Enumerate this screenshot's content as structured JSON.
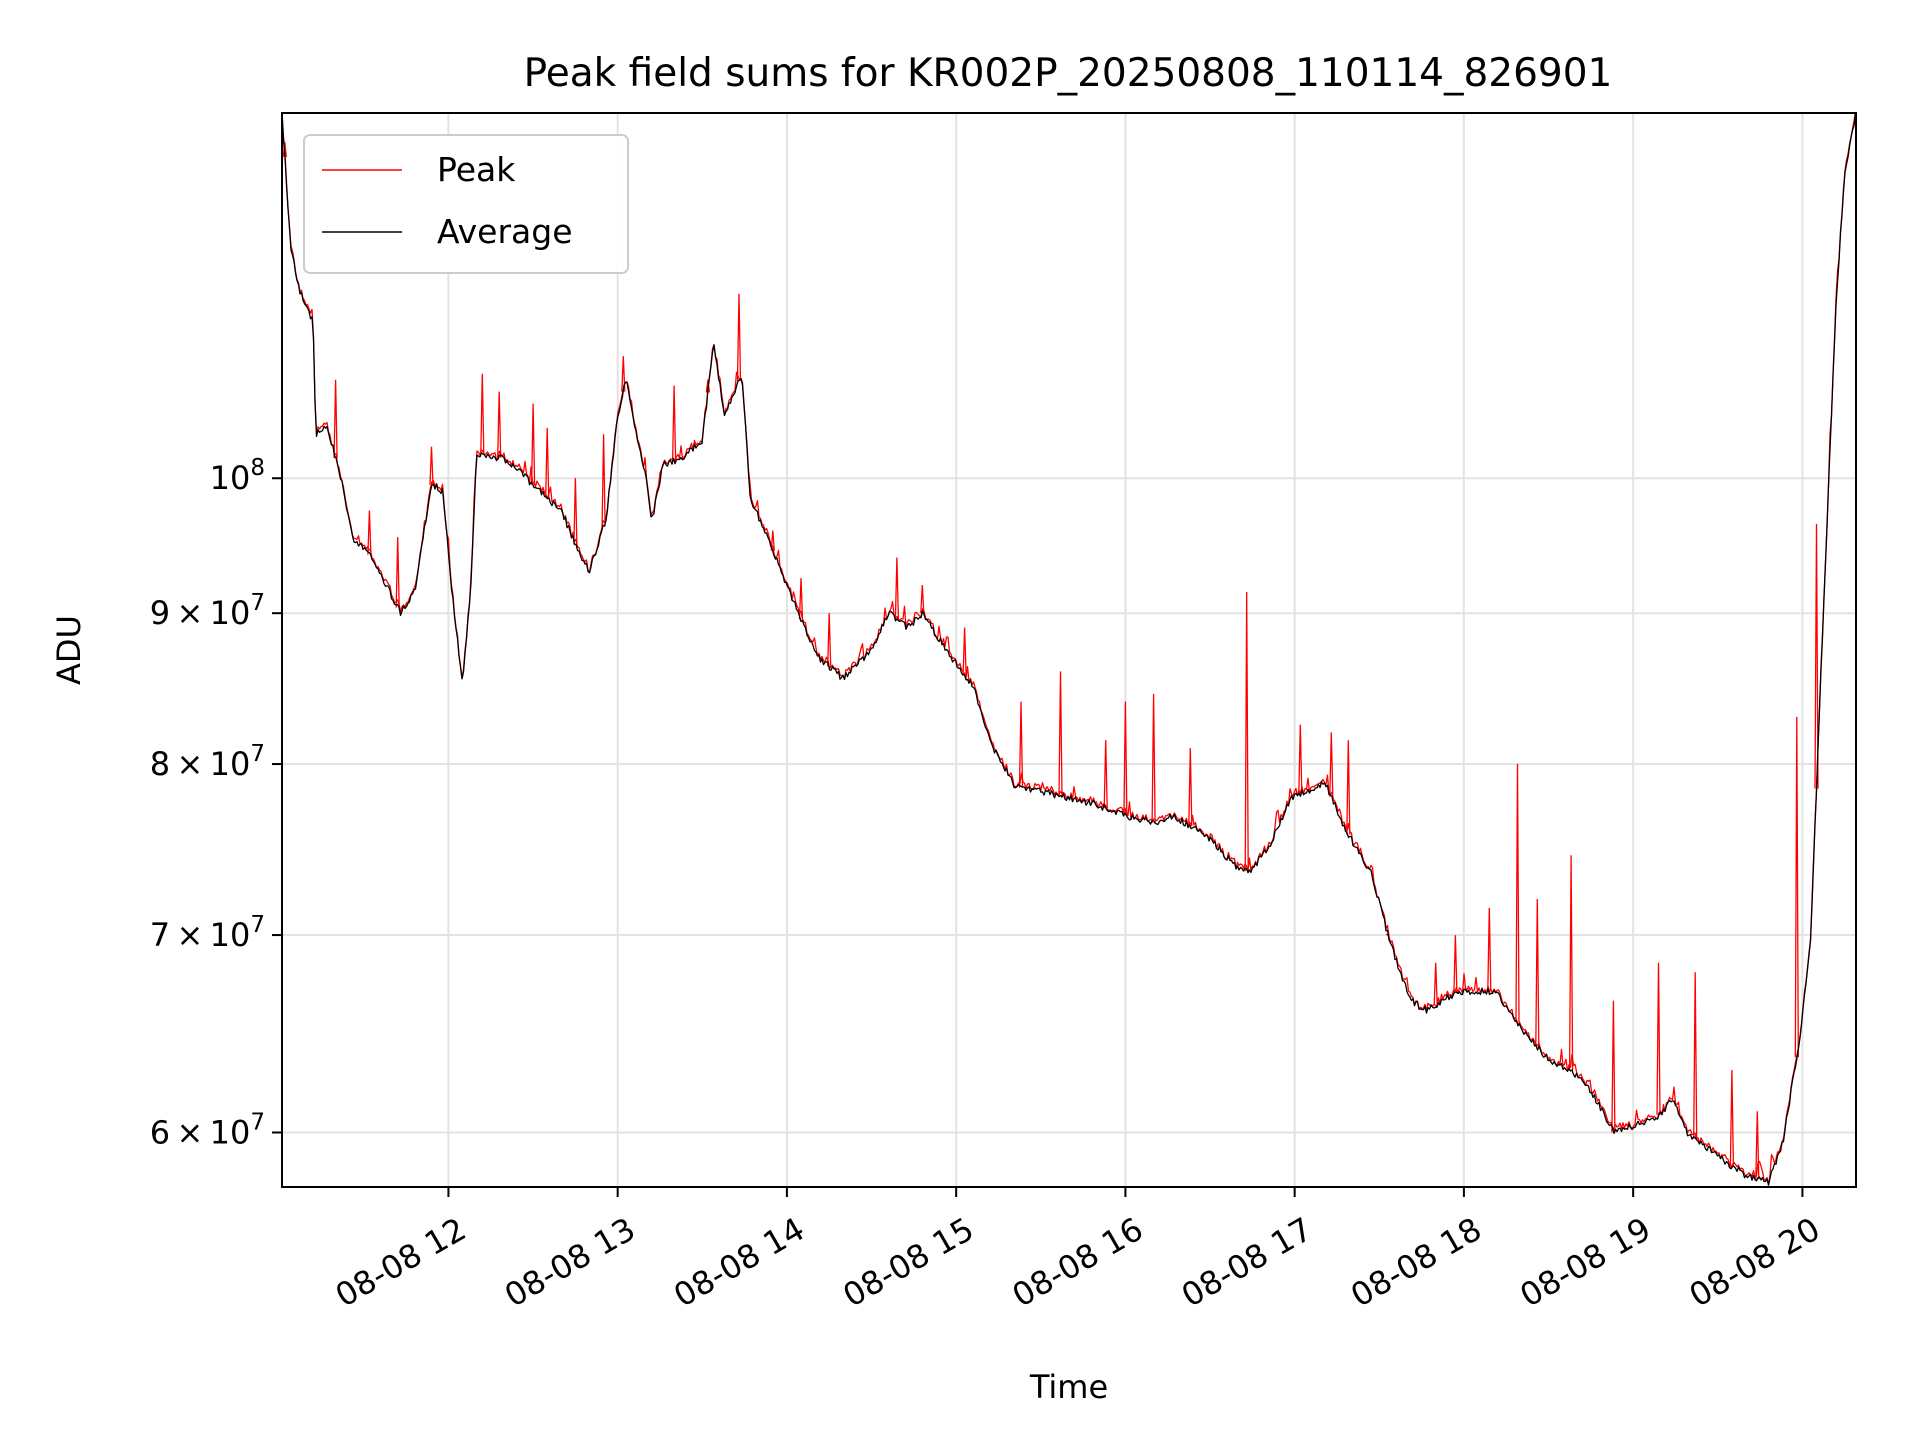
{
  "chart_data": {
    "type": "line",
    "title": "Peak field sums for KR002P_20250808_110114_826901",
    "xlabel": "Time",
    "ylabel": "ADU",
    "yscale": "log",
    "xlim": [
      "2025-08-08 11:01",
      "2025-08-08 20:19"
    ],
    "ylim": [
      57500000,
      133000000
    ],
    "grid": true,
    "legend": "top-left",
    "x_ticks": [
      "08-08 12",
      "08-08 13",
      "08-08 14",
      "08-08 15",
      "08-08 16",
      "08-08 17",
      "08-08 18",
      "08-08 19",
      "08-08 20"
    ],
    "y_ticks": [
      {
        "value": 60000000,
        "mantissa": "6",
        "base": "10",
        "exp": "7"
      },
      {
        "value": 70000000,
        "mantissa": "7",
        "base": "10",
        "exp": "7"
      },
      {
        "value": 80000000,
        "mantissa": "8",
        "base": "10",
        "exp": "7"
      },
      {
        "value": 90000000,
        "mantissa": "9",
        "base": "10",
        "exp": "7"
      },
      {
        "value": 100000000,
        "mantissa": "",
        "base": "10",
        "exp": "8"
      }
    ],
    "series": [
      {
        "name": "Average",
        "color": "#000000",
        "points": [
          [
            "2025-08-08 11:01",
            133000000
          ],
          [
            "2025-08-08 11:04",
            120000000
          ],
          [
            "2025-08-08 11:07",
            116000000
          ],
          [
            "2025-08-08 11:12",
            113000000
          ],
          [
            "2025-08-08 11:13",
            103500000
          ],
          [
            "2025-08-08 11:17",
            104000000
          ],
          [
            "2025-08-08 11:22",
            100000000
          ],
          [
            "2025-08-08 11:26",
            95500000
          ],
          [
            "2025-08-08 11:33",
            94000000
          ],
          [
            "2025-08-08 11:43",
            90000000
          ],
          [
            "2025-08-08 11:48",
            91500000
          ],
          [
            "2025-08-08 11:54",
            99500000
          ],
          [
            "2025-08-08 11:58",
            99000000
          ],
          [
            "2025-08-08 12:01",
            92000000
          ],
          [
            "2025-08-08 12:05",
            85000000
          ],
          [
            "2025-08-08 12:08",
            92000000
          ],
          [
            "2025-08-08 12:10",
            102000000
          ],
          [
            "2025-08-08 12:20",
            101500000
          ],
          [
            "2025-08-08 12:30",
            99500000
          ],
          [
            "2025-08-08 12:40",
            97500000
          ],
          [
            "2025-08-08 12:46",
            94500000
          ],
          [
            "2025-08-08 12:50",
            93000000
          ],
          [
            "2025-08-08 12:56",
            97000000
          ],
          [
            "2025-08-08 13:00",
            105000000
          ],
          [
            "2025-08-08 13:03",
            108000000
          ],
          [
            "2025-08-08 13:07",
            103000000
          ],
          [
            "2025-08-08 13:10",
            100000000
          ],
          [
            "2025-08-08 13:12",
            96500000
          ],
          [
            "2025-08-08 13:16",
            101000000
          ],
          [
            "2025-08-08 13:22",
            101500000
          ],
          [
            "2025-08-08 13:30",
            103000000
          ],
          [
            "2025-08-08 13:34",
            111000000
          ],
          [
            "2025-08-08 13:38",
            105000000
          ],
          [
            "2025-08-08 13:44",
            108500000
          ],
          [
            "2025-08-08 13:47",
            98500000
          ],
          [
            "2025-08-08 13:56",
            94000000
          ],
          [
            "2025-08-08 14:04",
            90000000
          ],
          [
            "2025-08-08 14:11",
            87000000
          ],
          [
            "2025-08-08 14:20",
            85500000
          ],
          [
            "2025-08-08 14:30",
            87500000
          ],
          [
            "2025-08-08 14:36",
            90000000
          ],
          [
            "2025-08-08 14:43",
            89000000
          ],
          [
            "2025-08-08 14:48",
            90000000
          ],
          [
            "2025-08-08 14:58",
            87000000
          ],
          [
            "2025-08-08 15:06",
            85000000
          ],
          [
            "2025-08-08 15:13",
            81000000
          ],
          [
            "2025-08-08 15:21",
            78600000
          ],
          [
            "2025-08-08 15:38",
            78000000
          ],
          [
            "2025-08-08 15:50",
            77500000
          ],
          [
            "2025-08-08 16:00",
            76800000
          ],
          [
            "2025-08-08 16:10",
            76400000
          ],
          [
            "2025-08-08 16:17",
            76800000
          ],
          [
            "2025-08-08 16:30",
            75500000
          ],
          [
            "2025-08-08 16:38",
            74000000
          ],
          [
            "2025-08-08 16:44",
            73500000
          ],
          [
            "2025-08-08 16:51",
            75000000
          ],
          [
            "2025-08-08 16:59",
            78000000
          ],
          [
            "2025-08-08 17:07",
            78500000
          ],
          [
            "2025-08-08 17:11",
            78800000
          ],
          [
            "2025-08-08 17:18",
            76000000
          ],
          [
            "2025-08-08 17:27",
            73500000
          ],
          [
            "2025-08-08 17:34",
            69500000
          ],
          [
            "2025-08-08 17:41",
            66500000
          ],
          [
            "2025-08-08 17:47",
            66000000
          ],
          [
            "2025-08-08 17:58",
            67000000
          ],
          [
            "2025-08-08 18:11",
            67000000
          ],
          [
            "2025-08-08 18:21",
            65000000
          ],
          [
            "2025-08-08 18:30",
            63500000
          ],
          [
            "2025-08-08 18:38",
            63000000
          ],
          [
            "2025-08-08 18:45",
            62000000
          ],
          [
            "2025-08-08 18:53",
            60000000
          ],
          [
            "2025-08-08 19:08",
            60700000
          ],
          [
            "2025-08-08 19:14",
            61500000
          ],
          [
            "2025-08-08 19:19",
            60000000
          ],
          [
            "2025-08-08 19:29",
            59000000
          ],
          [
            "2025-08-08 19:40",
            58000000
          ],
          [
            "2025-08-08 19:48",
            57700000
          ],
          [
            "2025-08-08 19:53",
            59500000
          ],
          [
            "2025-08-08 19:59",
            64500000
          ],
          [
            "2025-08-08 20:03",
            70000000
          ],
          [
            "2025-08-08 20:07",
            88000000
          ],
          [
            "2025-08-08 20:12",
            115000000
          ],
          [
            "2025-08-08 20:15",
            127000000
          ],
          [
            "2025-08-08 20:19",
            133000000
          ]
        ]
      },
      {
        "name": "Peak",
        "color": "#ff0000",
        "spikes": [
          [
            "2025-08-08 11:02",
            130000000
          ],
          [
            "2025-08-08 11:20",
            108000000
          ],
          [
            "2025-08-08 11:32",
            97500000
          ],
          [
            "2025-08-08 11:42",
            95500000
          ],
          [
            "2025-08-08 11:54",
            102500000
          ],
          [
            "2025-08-08 12:12",
            108500000
          ],
          [
            "2025-08-08 12:18",
            107000000
          ],
          [
            "2025-08-08 12:30",
            106000000
          ],
          [
            "2025-08-08 12:35",
            104000000
          ],
          [
            "2025-08-08 12:45",
            100000000
          ],
          [
            "2025-08-08 12:55",
            103500000
          ],
          [
            "2025-08-08 13:02",
            110000000
          ],
          [
            "2025-08-08 13:20",
            107500000
          ],
          [
            "2025-08-08 13:32",
            108000000
          ],
          [
            "2025-08-08 13:43",
            115500000
          ],
          [
            "2025-08-08 13:55",
            96000000
          ],
          [
            "2025-08-08 14:05",
            92500000
          ],
          [
            "2025-08-08 14:15",
            90000000
          ],
          [
            "2025-08-08 14:39",
            94000000
          ],
          [
            "2025-08-08 14:48",
            92000000
          ],
          [
            "2025-08-08 15:03",
            89000000
          ],
          [
            "2025-08-08 15:23",
            84000000
          ],
          [
            "2025-08-08 15:37",
            86000000
          ],
          [
            "2025-08-08 15:53",
            81500000
          ],
          [
            "2025-08-08 16:00",
            84000000
          ],
          [
            "2025-08-08 16:10",
            84500000
          ],
          [
            "2025-08-08 16:23",
            81000000
          ],
          [
            "2025-08-08 16:43",
            91500000
          ],
          [
            "2025-08-08 17:02",
            82500000
          ],
          [
            "2025-08-08 17:13",
            82000000
          ],
          [
            "2025-08-08 17:19",
            81500000
          ],
          [
            "2025-08-08 17:33",
            70000000
          ],
          [
            "2025-08-08 17:50",
            68500000
          ],
          [
            "2025-08-08 17:57",
            70000000
          ],
          [
            "2025-08-08 18:09",
            71500000
          ],
          [
            "2025-08-08 18:19",
            80000000
          ],
          [
            "2025-08-08 18:26",
            72000000
          ],
          [
            "2025-08-08 18:38",
            74500000
          ],
          [
            "2025-08-08 18:53",
            66500000
          ],
          [
            "2025-08-08 19:09",
            68500000
          ],
          [
            "2025-08-08 19:22",
            68000000
          ],
          [
            "2025-08-08 19:35",
            63000000
          ],
          [
            "2025-08-08 19:44",
            61000000
          ],
          [
            "2025-08-08 19:58",
            83000000
          ],
          [
            "2025-08-08 20:05",
            96500000
          ]
        ]
      }
    ]
  }
}
